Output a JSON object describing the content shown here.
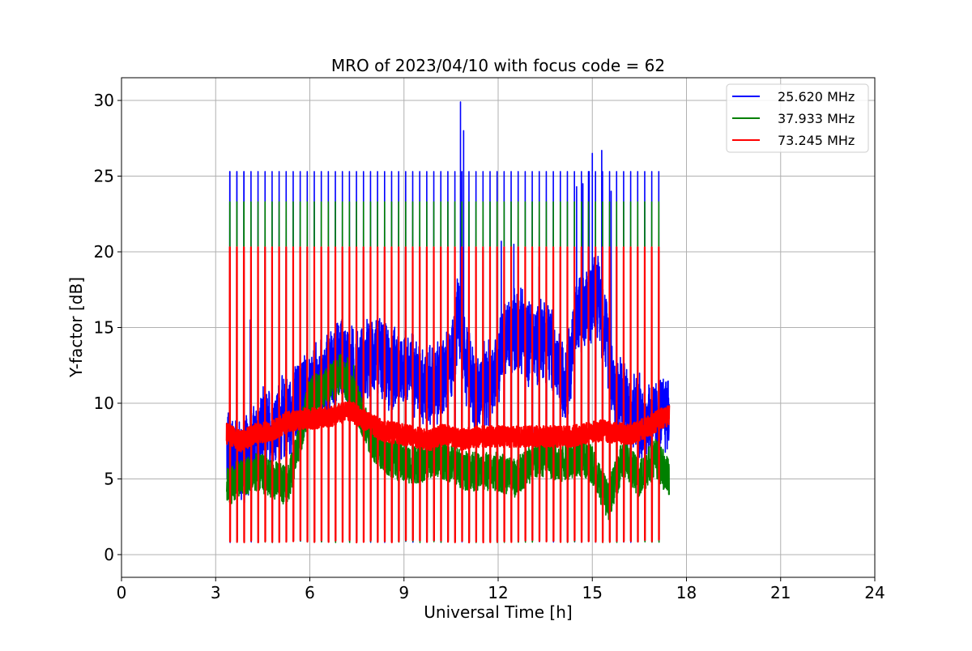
{
  "chart_data": {
    "type": "line",
    "title": "MRO of 2023/04/10 with focus code = 62",
    "xlabel": "Universal Time [h]",
    "ylabel": "Y-factor [dB]",
    "xlim": [
      0,
      24
    ],
    "ylim": [
      -1.5,
      31.5
    ],
    "xticks": [
      0,
      3,
      6,
      9,
      12,
      15,
      18,
      21,
      24
    ],
    "yticks": [
      0,
      5,
      10,
      15,
      20,
      25,
      30
    ],
    "grid": true,
    "legend_position": "top-right",
    "data_start_h": 3.35,
    "data_end_h": 17.45,
    "calibration_pulse_interval_h": 0.224,
    "series": [
      {
        "name": "25.620 MHz",
        "color": "#0000ff",
        "calibration_pulse_peak": 25.3,
        "baseline_points": [
          [
            3.35,
            7.0
          ],
          [
            3.8,
            6.0
          ],
          [
            4.5,
            8.0
          ],
          [
            5.2,
            9.0
          ],
          [
            6.0,
            11.0
          ],
          [
            6.5,
            11.5
          ],
          [
            7.0,
            13.0
          ],
          [
            7.5,
            12.0
          ],
          [
            8.2,
            13.5
          ],
          [
            8.5,
            12.0
          ],
          [
            9.0,
            12.5
          ],
          [
            9.5,
            11.5
          ],
          [
            10.0,
            11.0
          ],
          [
            10.5,
            12.5
          ],
          [
            10.75,
            16.0
          ],
          [
            10.95,
            13.0
          ],
          [
            11.3,
            10.5
          ],
          [
            11.8,
            11.5
          ],
          [
            12.2,
            14.0
          ],
          [
            12.6,
            15.0
          ],
          [
            13.0,
            14.0
          ],
          [
            13.5,
            14.5
          ],
          [
            13.8,
            13.0
          ],
          [
            14.0,
            11.5
          ],
          [
            14.3,
            12.5
          ],
          [
            14.5,
            16.0
          ],
          [
            14.8,
            15.5
          ],
          [
            15.1,
            18.0
          ],
          [
            15.5,
            14.0
          ],
          [
            15.7,
            11.0
          ],
          [
            16.2,
            9.5
          ],
          [
            16.6,
            9.0
          ],
          [
            17.0,
            9.0
          ],
          [
            17.45,
            9.5
          ]
        ],
        "spikes": [
          [
            4.1,
            15.5
          ],
          [
            10.8,
            29.9
          ],
          [
            10.9,
            28.0
          ],
          [
            12.1,
            20.7
          ],
          [
            12.5,
            20.5
          ],
          [
            13.3,
            19.0
          ],
          [
            14.5,
            24.3
          ],
          [
            14.7,
            24.5
          ],
          [
            14.9,
            25.3
          ],
          [
            15.0,
            26.5
          ],
          [
            15.3,
            26.7
          ],
          [
            15.6,
            24.0
          ]
        ]
      },
      {
        "name": "37.933 MHz",
        "color": "#008000",
        "calibration_pulse_peak": 23.3,
        "baseline_points": [
          [
            3.35,
            4.5
          ],
          [
            3.8,
            5.0
          ],
          [
            4.3,
            5.5
          ],
          [
            4.8,
            5.0
          ],
          [
            5.3,
            4.5
          ],
          [
            5.6,
            7.0
          ],
          [
            6.0,
            10.5
          ],
          [
            6.5,
            11.0
          ],
          [
            7.0,
            12.0
          ],
          [
            7.5,
            10.0
          ],
          [
            8.0,
            7.5
          ],
          [
            8.5,
            6.5
          ],
          [
            9.0,
            6.0
          ],
          [
            9.5,
            6.0
          ],
          [
            10.0,
            6.5
          ],
          [
            10.5,
            6.0
          ],
          [
            11.0,
            5.5
          ],
          [
            11.5,
            5.5
          ],
          [
            12.0,
            5.5
          ],
          [
            12.5,
            5.0
          ],
          [
            13.0,
            6.0
          ],
          [
            13.5,
            6.5
          ],
          [
            14.0,
            6.0
          ],
          [
            14.5,
            6.5
          ],
          [
            15.0,
            6.0
          ],
          [
            15.5,
            3.5
          ],
          [
            16.0,
            6.5
          ],
          [
            16.5,
            5.0
          ],
          [
            17.0,
            6.5
          ],
          [
            17.45,
            5.0
          ]
        ],
        "spikes": [
          [
            7.2,
            13.0
          ],
          [
            7.4,
            12.5
          ]
        ]
      },
      {
        "name": "73.245 MHz",
        "color": "#ff0000",
        "calibration_pulse_peak": 20.3,
        "baseline_points": [
          [
            3.35,
            8.0
          ],
          [
            3.8,
            7.5
          ],
          [
            4.3,
            8.0
          ],
          [
            4.8,
            8.2
          ],
          [
            5.3,
            8.8
          ],
          [
            5.8,
            9.0
          ],
          [
            6.3,
            9.0
          ],
          [
            6.8,
            9.2
          ],
          [
            7.3,
            9.5
          ],
          [
            7.8,
            8.8
          ],
          [
            8.3,
            8.2
          ],
          [
            8.8,
            8.0
          ],
          [
            9.3,
            7.8
          ],
          [
            9.8,
            7.5
          ],
          [
            10.3,
            8.0
          ],
          [
            10.8,
            7.6
          ],
          [
            11.3,
            7.8
          ],
          [
            11.8,
            7.8
          ],
          [
            12.3,
            7.8
          ],
          [
            12.8,
            7.8
          ],
          [
            13.3,
            7.8
          ],
          [
            13.8,
            7.8
          ],
          [
            14.3,
            7.8
          ],
          [
            14.8,
            8.0
          ],
          [
            15.3,
            8.2
          ],
          [
            15.8,
            8.0
          ],
          [
            16.3,
            8.0
          ],
          [
            16.8,
            8.5
          ],
          [
            17.2,
            9.0
          ],
          [
            17.45,
            9.2
          ]
        ],
        "spikes": []
      }
    ]
  }
}
